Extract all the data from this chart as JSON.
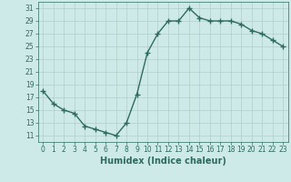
{
  "x": [
    0,
    1,
    2,
    3,
    4,
    5,
    6,
    7,
    8,
    9,
    10,
    11,
    12,
    13,
    14,
    15,
    16,
    17,
    18,
    19,
    20,
    21,
    22,
    23
  ],
  "y": [
    18,
    16,
    15,
    14.5,
    12.5,
    12,
    11.5,
    11,
    13,
    17.5,
    24,
    27,
    29,
    29,
    31,
    29.5,
    29,
    29,
    29,
    28.5,
    27.5,
    27,
    26,
    25
  ],
  "line_color": "#2e6b5e",
  "marker": "+",
  "marker_size": 4,
  "bg_color": "#ceeae8",
  "grid_color": "#b0ceca",
  "xlabel": "Humidex (Indice chaleur)",
  "xlim": [
    -0.5,
    23.5
  ],
  "ylim": [
    10,
    32
  ],
  "yticks": [
    11,
    13,
    15,
    17,
    19,
    21,
    23,
    25,
    27,
    29,
    31
  ],
  "xticks": [
    0,
    1,
    2,
    3,
    4,
    5,
    6,
    7,
    8,
    9,
    10,
    11,
    12,
    13,
    14,
    15,
    16,
    17,
    18,
    19,
    20,
    21,
    22,
    23
  ],
  "tick_label_fontsize": 5.5,
  "xlabel_fontsize": 7,
  "line_width": 1.0,
  "marker_color": "#2e6b5e"
}
